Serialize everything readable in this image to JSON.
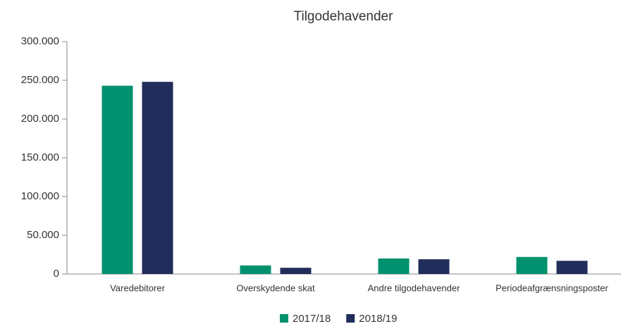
{
  "chart_data": {
    "type": "bar",
    "title": "Tilgodehavender",
    "categories": [
      "Varedebitorer",
      "Overskydende skat",
      "Andre tilgodehavender",
      "Periodeafgrænsningsposter"
    ],
    "series": [
      {
        "name": "2017/18",
        "color": "#00916e",
        "values": [
          243000,
          11000,
          20000,
          22000
        ]
      },
      {
        "name": "2018/19",
        "color": "#212d5a",
        "values": [
          248000,
          8000,
          19000,
          17000
        ]
      }
    ],
    "ylim": [
      0,
      300000
    ],
    "yticks": [
      0,
      {
        "value": 50000,
        "label": "50.000"
      },
      {
        "value": 100000,
        "label": "100.000"
      },
      {
        "value": 150000,
        "label": "150.000"
      },
      {
        "value": 200000,
        "label": "200.000"
      },
      {
        "value": 250000,
        "label": "250.000"
      },
      {
        "value": 300000,
        "label": "300.000"
      }
    ],
    "grid": false
  }
}
